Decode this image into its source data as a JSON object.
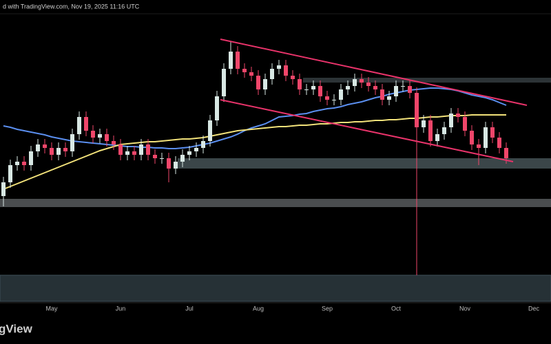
{
  "header": {
    "text": "d with TradingView.com, Nov 19, 2025 11:16 UTC"
  },
  "chart_data": {
    "type": "candlestick",
    "categories": [
      null,
      null,
      null,
      null,
      null,
      null,
      null,
      "May",
      null,
      null,
      null,
      null,
      null,
      null,
      null,
      null,
      null,
      "Jun",
      null,
      null,
      null,
      null,
      null,
      null,
      null,
      null,
      null,
      "Jul",
      null,
      null,
      null,
      null,
      null,
      null,
      null,
      null,
      null,
      "Aug",
      null,
      null,
      null,
      null,
      null,
      null,
      null,
      null,
      null,
      "Sep",
      null,
      null,
      null,
      null,
      null,
      null,
      null,
      null,
      null,
      "Oct",
      null,
      null,
      null,
      null,
      null,
      null,
      null,
      null,
      null,
      "Nov",
      null,
      null,
      null,
      null,
      null,
      null,
      null,
      null,
      null,
      "Dec"
    ],
    "open": [
      155,
      175,
      200,
      205,
      200,
      220,
      230,
      225,
      215,
      225,
      220,
      245,
      270,
      250,
      240,
      245,
      235,
      230,
      215,
      220,
      215,
      230,
      215,
      210,
      210,
      195,
      205,
      215,
      220,
      225,
      235,
      265,
      300,
      340,
      365,
      340,
      335,
      330,
      310,
      325,
      340,
      345,
      330,
      325,
      310,
      310,
      315,
      300,
      295,
      295,
      310,
      315,
      325,
      320,
      315,
      310,
      295,
      300,
      315,
      315,
      305,
      255,
      265,
      235,
      245,
      255,
      275,
      270,
      250,
      230,
      225,
      255,
      240,
      225,
      null,
      null,
      null,
      null
    ],
    "high": [
      183,
      208,
      213,
      213,
      228,
      238,
      238,
      233,
      233,
      233,
      253,
      278,
      278,
      258,
      253,
      253,
      243,
      238,
      228,
      228,
      238,
      238,
      223,
      218,
      218,
      213,
      223,
      228,
      233,
      243,
      273,
      308,
      348,
      380,
      373,
      348,
      343,
      338,
      333,
      348,
      353,
      353,
      338,
      333,
      318,
      323,
      323,
      308,
      303,
      318,
      323,
      333,
      333,
      328,
      323,
      318,
      308,
      323,
      323,
      323,
      313,
      273,
      273,
      253,
      263,
      283,
      283,
      278,
      258,
      238,
      263,
      263,
      248,
      233,
      null,
      null,
      null,
      null
    ],
    "low": [
      140,
      167,
      192,
      192,
      192,
      212,
      217,
      207,
      207,
      212,
      212,
      237,
      242,
      232,
      232,
      227,
      222,
      207,
      207,
      207,
      207,
      207,
      202,
      202,
      175,
      187,
      197,
      207,
      212,
      217,
      227,
      257,
      292,
      332,
      332,
      327,
      322,
      302,
      302,
      317,
      332,
      322,
      317,
      302,
      302,
      302,
      292,
      287,
      287,
      287,
      302,
      307,
      312,
      307,
      302,
      287,
      287,
      292,
      307,
      297,
      40,
      247,
      227,
      227,
      237,
      247,
      262,
      242,
      222,
      200,
      217,
      232,
      217,
      202,
      null,
      null,
      null,
      null
    ],
    "close": [
      175,
      200,
      205,
      200,
      220,
      230,
      225,
      215,
      225,
      220,
      245,
      270,
      250,
      240,
      245,
      235,
      230,
      215,
      220,
      215,
      230,
      215,
      210,
      210,
      195,
      205,
      215,
      220,
      225,
      235,
      265,
      300,
      340,
      365,
      340,
      335,
      330,
      310,
      325,
      340,
      345,
      330,
      325,
      310,
      310,
      315,
      300,
      295,
      295,
      310,
      315,
      325,
      320,
      315,
      310,
      295,
      300,
      315,
      315,
      305,
      255,
      265,
      235,
      245,
      255,
      275,
      270,
      250,
      230,
      225,
      255,
      240,
      225,
      210,
      null,
      null,
      null,
      null
    ],
    "up_color": "#d8e8e4",
    "down_color": "#f0466a",
    "ylim": [
      0,
      420
    ],
    "series": [
      {
        "color": "#5b8ff0",
        "values": [
          257,
          255,
          252,
          250,
          248,
          246,
          244,
          241,
          239,
          237,
          235,
          234,
          233,
          232,
          231,
          230,
          229,
          228,
          227,
          227,
          226,
          226,
          225,
          225,
          224,
          224,
          225,
          226,
          228,
          230,
          232,
          235,
          238,
          241,
          245,
          250,
          254,
          257,
          260,
          265,
          270,
          271,
          272,
          274,
          275,
          278,
          280,
          282,
          283,
          285,
          288,
          290,
          292,
          295,
          298,
          300,
          303,
          305,
          307,
          309,
          310,
          311,
          312,
          312,
          311,
          310,
          308,
          305,
          302,
          300,
          298,
          295,
          291,
          287,
          null,
          null,
          null,
          null
        ]
      },
      {
        "color": "#f2e27a",
        "values": [
          165,
          169,
          173,
          177,
          181,
          185,
          189,
          193,
          197,
          201,
          205,
          209,
          213,
          217,
          221,
          224,
          227,
          230,
          231,
          232,
          233,
          234,
          234,
          235,
          236,
          237,
          238,
          238,
          239,
          240,
          242,
          244,
          246,
          248,
          250,
          251,
          252,
          253,
          254,
          255,
          256,
          256,
          257,
          258,
          258,
          259,
          260,
          260,
          261,
          262,
          262,
          263,
          263,
          264,
          265,
          265,
          266,
          266,
          267,
          268,
          268,
          269,
          270,
          270,
          271,
          272,
          272,
          272,
          273,
          273,
          273,
          273,
          273,
          273,
          null,
          null,
          null,
          null
        ]
      }
    ]
  },
  "footer": {
    "logo": "gView"
  }
}
